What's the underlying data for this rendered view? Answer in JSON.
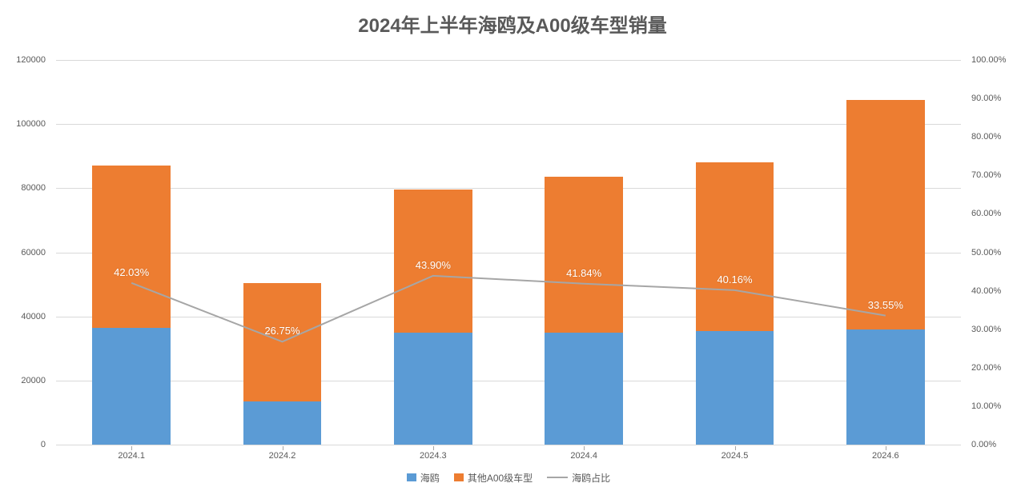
{
  "chart": {
    "type": "stacked-bar-with-line",
    "title": "2024年上半年海鸥及A00级车型销量",
    "title_fontsize": 24,
    "title_color": "#595959",
    "background_color": "#ffffff",
    "grid_color": "#d9d9d9",
    "axis_label_color": "#595959",
    "axis_label_fontsize": 11,
    "data_label_fontsize": 13,
    "data_label_color": "#ffffff",
    "categories": [
      "2024.1",
      "2024.2",
      "2024.3",
      "2024.4",
      "2024.5",
      "2024.6"
    ],
    "series": {
      "haiou": {
        "label": "海鸥",
        "color": "#5b9bd5",
        "values": [
          36500,
          13500,
          35000,
          35000,
          35500,
          36000
        ]
      },
      "other_a00": {
        "label": "其他A00级车型",
        "color": "#ed7d31",
        "values": [
          50500,
          37000,
          44500,
          48500,
          52500,
          71500
        ]
      },
      "haiou_share": {
        "label": "海鸥占比",
        "color": "#a6a6a6",
        "line_width": 2,
        "values": [
          42.03,
          26.75,
          43.9,
          41.84,
          40.16,
          33.55
        ],
        "value_labels": [
          "42.03%",
          "26.75%",
          "43.90%",
          "41.84%",
          "40.16%",
          "33.55%"
        ]
      }
    },
    "y_left": {
      "min": 0,
      "max": 120000,
      "step": 20000,
      "ticks": [
        "0",
        "20000",
        "40000",
        "60000",
        "80000",
        "100000",
        "120000"
      ]
    },
    "y_right": {
      "min": 0,
      "max": 100,
      "step": 10,
      "ticks": [
        "0.00%",
        "10.00%",
        "20.00%",
        "30.00%",
        "40.00%",
        "50.00%",
        "60.00%",
        "70.00%",
        "80.00%",
        "90.00%",
        "100.00%"
      ]
    },
    "bar_width_ratio": 0.52,
    "legend": {
      "items": [
        {
          "key": "haiou",
          "label": "海鸥",
          "type": "swatch",
          "color": "#5b9bd5"
        },
        {
          "key": "other_a00",
          "label": "其他A00级车型",
          "type": "swatch",
          "color": "#ed7d31"
        },
        {
          "key": "haiou_share",
          "label": "海鸥占比",
          "type": "line",
          "color": "#a6a6a6"
        }
      ]
    }
  }
}
